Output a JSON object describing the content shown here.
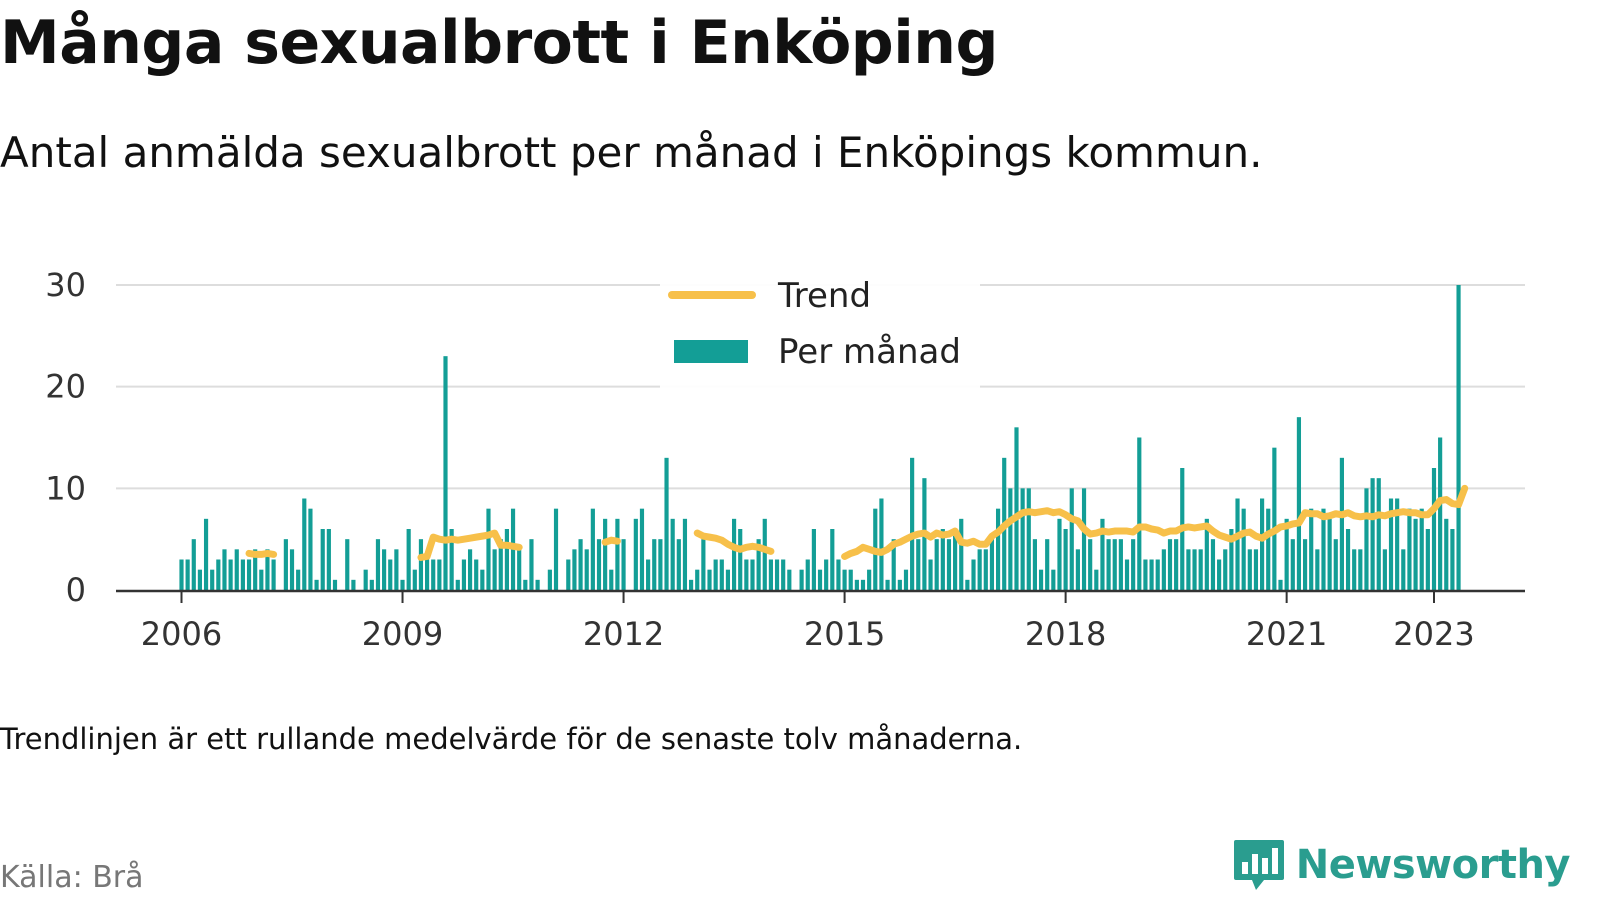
{
  "header": {
    "title": "Många sexualbrott i Enköping",
    "subtitle": "Antal anmälda sexualbrott per månad i Enköpings kommun."
  },
  "footer": {
    "note": "Trendlinjen är ett rullande medelvärde för de senaste tolv månaderna.",
    "source": "Källa: Brå",
    "brand": "Newsworthy"
  },
  "colors": {
    "bars": "#139e96",
    "trend": "#f7c04a",
    "grid": "#dddddd",
    "axis": "#333333",
    "brand": "#2a9d8f"
  },
  "icons": {
    "brand_logo": "bar-chart-speech-bubble-icon"
  },
  "chart_data": {
    "type": "bar",
    "title": "Många sexualbrott i Enköping",
    "subtitle": "Antal anmälda sexualbrott per månad i Enköpings kommun.",
    "ylim": [
      0,
      30
    ],
    "yticks": [
      0,
      10,
      20,
      30
    ],
    "xticks": [
      {
        "label": "2006",
        "year": 2006
      },
      {
        "label": "2009",
        "year": 2009
      },
      {
        "label": "2012",
        "year": 2012
      },
      {
        "label": "2015",
        "year": 2015
      },
      {
        "label": "2018",
        "year": 2018
      },
      {
        "label": "2021",
        "year": 2021
      },
      {
        "label": "2023",
        "year": 2023
      }
    ],
    "grid": true,
    "legend": {
      "placement": "top-center",
      "entries": [
        {
          "label": "Trend",
          "kind": "line"
        },
        {
          "label": "Per månad",
          "kind": "bar"
        }
      ]
    },
    "start_month": "2006-01",
    "series": [
      {
        "name": "Per månad",
        "type": "bar",
        "values": [
          3,
          3,
          5,
          2,
          7,
          2,
          3,
          4,
          3,
          4,
          3,
          3,
          4,
          2,
          4,
          3,
          0,
          5,
          4,
          2,
          9,
          8,
          1,
          6,
          6,
          1,
          0,
          5,
          1,
          0,
          2,
          1,
          5,
          4,
          3,
          4,
          1,
          6,
          2,
          5,
          3,
          3,
          3,
          23,
          6,
          1,
          3,
          4,
          3,
          2,
          8,
          4,
          5,
          6,
          8,
          4,
          1,
          5,
          1,
          0,
          2,
          8,
          0,
          3,
          4,
          5,
          4,
          8,
          5,
          7,
          2,
          7,
          5,
          0,
          7,
          8,
          3,
          5,
          5,
          13,
          7,
          5,
          7,
          1,
          2,
          5,
          2,
          3,
          3,
          2,
          7,
          6,
          3,
          3,
          5,
          7,
          3,
          3,
          3,
          2,
          0,
          2,
          3,
          6,
          2,
          3,
          6,
          3,
          2,
          2,
          1,
          1,
          2,
          8,
          9,
          1,
          5,
          1,
          2,
          13,
          5,
          11,
          3,
          5,
          6,
          5,
          6,
          7,
          1,
          3,
          4,
          4,
          5,
          8,
          13,
          10,
          16,
          10,
          10,
          5,
          2,
          5,
          2,
          7,
          6,
          10,
          4,
          10,
          5,
          2,
          7,
          5,
          5,
          5,
          3,
          5,
          15,
          3,
          3,
          3,
          4,
          5,
          5,
          12,
          4,
          4,
          4,
          7,
          5,
          3,
          4,
          6,
          9,
          8,
          4,
          4,
          9,
          8,
          14,
          1,
          7,
          5,
          17,
          5,
          8,
          4,
          8,
          7,
          5,
          13,
          6,
          4,
          4,
          10,
          11,
          11,
          4,
          9,
          9,
          4,
          8,
          7,
          8,
          6,
          12,
          15,
          7,
          6,
          30
        ]
      },
      {
        "name": "Trend",
        "type": "line",
        "segments": [
          {
            "start": "2006-12",
            "values": [
              3.6,
              3.5,
              3.5,
              3.6,
              3.5
            ]
          },
          {
            "start": "2009-04",
            "values": [
              3.2,
              3.3,
              5.2,
              5.0,
              4.9,
              5.0,
              4.9,
              5.0,
              5.1,
              5.2,
              5.3,
              5.4,
              5.6,
              4.4,
              4.4,
              4.3,
              4.2
            ]
          },
          {
            "start": "2011-10",
            "values": [
              4.7,
              4.9,
              4.8
            ]
          },
          {
            "start": "2013-01",
            "values": [
              5.6,
              5.3,
              5.2,
              5.1,
              4.9,
              4.5,
              4.2,
              4.0,
              4.2,
              4.3,
              4.2,
              4.0,
              3.8
            ]
          },
          {
            "start": "2015-01",
            "values": [
              3.3,
              3.6,
              3.8,
              4.2,
              4.0,
              3.8,
              3.7,
              4.0,
              4.5,
              4.7,
              5.0,
              5.3,
              5.5,
              5.6,
              5.2,
              5.6,
              5.4,
              5.5,
              5.8,
              4.7,
              4.6,
              4.8,
              4.5,
              4.5,
              5.3,
              5.7,
              6.3,
              6.8,
              7.2,
              7.6,
              7.7,
              7.6,
              7.7,
              7.8,
              7.6,
              7.7,
              7.4,
              7.0,
              6.8,
              6.0,
              5.5,
              5.6,
              5.8,
              5.7,
              5.8,
              5.8,
              5.8,
              5.7,
              6.2,
              6.2,
              6.0,
              5.9,
              5.6,
              5.8,
              5.8,
              6.1,
              6.2,
              6.1,
              6.2,
              6.3,
              5.8,
              5.4,
              5.2,
              5.0,
              5.3,
              5.6,
              5.7,
              5.3,
              5.1,
              5.5,
              5.8,
              6.2,
              6.3,
              6.5,
              6.6,
              7.6,
              7.5,
              7.5,
              7.2,
              7.3,
              7.5,
              7.4,
              7.6,
              7.3,
              7.2,
              7.3,
              7.2,
              7.4,
              7.3,
              7.5,
              7.6,
              7.7,
              7.6,
              7.6,
              7.4,
              7.4,
              8.0,
              8.8,
              8.9,
              8.5,
              8.4,
              10.0
            ]
          }
        ]
      }
    ]
  }
}
